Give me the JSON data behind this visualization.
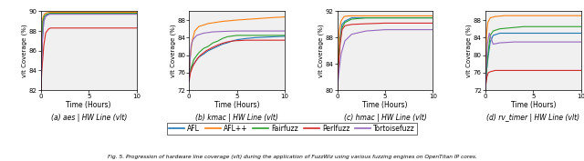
{
  "figsize": [
    6.4,
    1.77
  ],
  "dpi": 100,
  "colors": {
    "AFL": "#1f77b4",
    "AFL++": "#ff7f0e",
    "Fairfuzz": "#2ca02c",
    "Perlfuzz": "#d62728",
    "Tortoisefuzz": "#9467bd"
  },
  "subplots": [
    {
      "title": "(a) aes | HW Line (vlt)",
      "ylabel": "vlt Coverage (%)",
      "xlabel": "Time (Hours)",
      "xlim": [
        0,
        10
      ],
      "ylim": [
        82,
        90
      ],
      "yticks": [
        82,
        84,
        86,
        88,
        90
      ],
      "xticks": [
        0,
        5,
        10
      ],
      "series": {
        "AFL": {
          "x": [
            0,
            0.08,
            0.15,
            0.3,
            0.5,
            0.7,
            1.0,
            10
          ],
          "y": [
            82,
            84.5,
            87.0,
            89.0,
            89.5,
            89.7,
            89.8,
            89.8
          ]
        },
        "AFL++": {
          "x": [
            0,
            0.07,
            0.12,
            0.2,
            0.35,
            0.6,
            1.0,
            10
          ],
          "y": [
            82,
            85.0,
            88.0,
            89.3,
            89.7,
            89.85,
            89.9,
            89.9
          ]
        },
        "Fairfuzz": {
          "x": [
            0,
            0.05,
            0.12,
            0.2,
            0.35,
            0.6,
            1.0,
            10
          ],
          "y": [
            82,
            84.0,
            87.2,
            89.0,
            89.5,
            89.7,
            89.8,
            89.8
          ]
        },
        "Perlfuzz": {
          "x": [
            0,
            0.1,
            0.3,
            0.5,
            0.8,
            1.0,
            10
          ],
          "y": [
            82,
            84.0,
            86.5,
            87.8,
            88.2,
            88.3,
            88.3
          ]
        },
        "Tortoisefuzz": {
          "x": [
            0,
            0.07,
            0.15,
            0.3,
            0.5,
            0.8,
            1.0,
            10
          ],
          "y": [
            82,
            84.2,
            87.0,
            89.0,
            89.5,
            89.65,
            89.7,
            89.7
          ]
        }
      }
    },
    {
      "title": "(b) kmac | HW Line (vlt)",
      "ylabel": "vlt Coverage (%)",
      "xlabel": "Time (Hours)",
      "xlim": [
        0,
        10
      ],
      "ylim": [
        72,
        90
      ],
      "yticks": [
        72,
        76,
        80,
        84,
        88
      ],
      "xticks": [
        0,
        5,
        10
      ],
      "series": {
        "AFL": {
          "x": [
            0,
            0.2,
            0.5,
            1.0,
            1.5,
            2.0,
            2.5,
            3.0,
            3.5,
            4.0,
            4.5,
            5.0,
            6.0,
            7.0,
            8.0,
            9.0,
            10
          ],
          "y": [
            75,
            77,
            78,
            79.5,
            80.2,
            81.0,
            81.5,
            82.0,
            82.5,
            82.8,
            83.2,
            83.5,
            83.8,
            84.0,
            84.1,
            84.2,
            84.3
          ]
        },
        "AFL++": {
          "x": [
            0,
            0.1,
            0.3,
            0.6,
            1.0,
            2.0,
            3.5,
            5.0,
            7.0,
            9.0,
            10
          ],
          "y": [
            75,
            79,
            83,
            85.5,
            86.5,
            87.2,
            87.7,
            88.0,
            88.3,
            88.6,
            88.7
          ]
        },
        "Fairfuzz": {
          "x": [
            0,
            0.2,
            0.5,
            1.0,
            1.5,
            2.0,
            2.5,
            3.0,
            3.5,
            4.0,
            5.0,
            6.0,
            7.0,
            8.0,
            9.0,
            10
          ],
          "y": [
            75,
            77,
            79,
            80.5,
            81.5,
            82.0,
            82.8,
            83.2,
            83.8,
            84.2,
            84.5,
            84.5,
            84.5,
            84.5,
            84.5,
            84.5
          ]
        },
        "Perlfuzz": {
          "x": [
            0,
            0.15,
            0.4,
            0.8,
            1.2,
            1.8,
            2.5,
            3.0,
            3.5,
            4.0,
            4.5,
            5.0,
            6.0,
            7.0,
            8.0,
            9.0,
            10
          ],
          "y": [
            74,
            76,
            77.5,
            79,
            80,
            81,
            81.8,
            82.3,
            82.7,
            83.0,
            83.2,
            83.3,
            83.4,
            83.4,
            83.4,
            83.4,
            83.4
          ]
        },
        "Tortoisefuzz": {
          "x": [
            0,
            0.08,
            0.2,
            0.4,
            0.8,
            1.5,
            2.5,
            3.5,
            5.0,
            7.0,
            9.0,
            10
          ],
          "y": [
            74,
            78,
            82,
            83.5,
            84.5,
            85.0,
            85.3,
            85.4,
            85.5,
            85.5,
            85.5,
            85.5
          ]
        }
      }
    },
    {
      "title": "(c) hmac | HW Line (vlt)",
      "ylabel": "vlt Coverage (%)",
      "xlabel": "Time (Hours)",
      "xlim": [
        0,
        10
      ],
      "ylim": [
        80,
        92
      ],
      "yticks": [
        80,
        84,
        88,
        92
      ],
      "xticks": [
        0,
        5,
        10
      ],
      "series": {
        "AFL": {
          "x": [
            0,
            0.1,
            0.3,
            0.5,
            0.8,
            1.5,
            3.0,
            5.0,
            10
          ],
          "y": [
            80,
            84,
            88,
            90.0,
            90.5,
            91.0,
            91.0,
            91.0,
            91.0
          ]
        },
        "AFL++": {
          "x": [
            0,
            0.08,
            0.2,
            0.4,
            0.7,
            1.2,
            3.0,
            5.0,
            10
          ],
          "y": [
            80,
            85,
            89,
            90.5,
            91.2,
            91.3,
            91.3,
            91.3,
            91.3
          ]
        },
        "Fairfuzz": {
          "x": [
            0,
            0.1,
            0.3,
            0.5,
            0.8,
            1.5,
            3.0,
            5.0,
            10
          ],
          "y": [
            80,
            84,
            87.5,
            89.5,
            90.3,
            90.8,
            91.0,
            91.0,
            91.0
          ]
        },
        "Perlfuzz": {
          "x": [
            0,
            0.1,
            0.3,
            0.5,
            0.8,
            1.5,
            3.0,
            5.0,
            10
          ],
          "y": [
            80,
            83,
            87,
            89.2,
            89.8,
            90.0,
            90.1,
            90.2,
            90.2
          ]
        },
        "Tortoisefuzz": {
          "x": [
            0,
            0.15,
            0.4,
            0.8,
            1.5,
            3.0,
            5.0,
            10
          ],
          "y": [
            80,
            82.5,
            85.5,
            87.5,
            88.5,
            89.0,
            89.2,
            89.2
          ]
        }
      }
    },
    {
      "title": "(d) rv_timer | HW Line (vlt)",
      "ylabel": "vlt Coverage (%)",
      "xlabel": "Time (Hours)",
      "xlim": [
        0,
        10
      ],
      "ylim": [
        72,
        90
      ],
      "yticks": [
        72,
        76,
        80,
        84,
        88
      ],
      "xticks": [
        0,
        5,
        10
      ],
      "series": {
        "AFL": {
          "x": [
            0,
            0.1,
            0.3,
            0.5,
            0.8,
            1.5,
            3.0,
            5.0,
            7.0,
            10
          ],
          "y": [
            72,
            76,
            80,
            83,
            84.5,
            85.0,
            85.0,
            85.0,
            85.0,
            85.0
          ]
        },
        "AFL++": {
          "x": [
            0,
            0.05,
            0.12,
            0.25,
            0.5,
            1.0,
            2.0,
            5.0,
            10
          ],
          "y": [
            72,
            79,
            85,
            87.5,
            88.5,
            88.8,
            89.0,
            89.0,
            89.0
          ]
        },
        "Fairfuzz": {
          "x": [
            0,
            0.1,
            0.3,
            0.5,
            0.8,
            1.5,
            4.0,
            6.5,
            7.0,
            10
          ],
          "y": [
            72,
            76,
            81,
            84.5,
            85.5,
            86.0,
            86.5,
            86.5,
            86.5,
            86.5
          ]
        },
        "Perlfuzz": {
          "x": [
            0,
            0.05,
            0.15,
            0.3,
            0.5,
            1.0,
            3.0,
            10
          ],
          "y": [
            72,
            73.5,
            75,
            76,
            76.2,
            76.5,
            76.5,
            76.5
          ]
        },
        "Tortoisefuzz": {
          "x": [
            0,
            0.08,
            0.2,
            0.4,
            0.8,
            1.5,
            3.0,
            5.0,
            10
          ],
          "y": [
            72,
            77,
            82.5,
            85.0,
            82.5,
            82.8,
            83.0,
            83.0,
            83.0
          ]
        }
      }
    }
  ],
  "legend_entries": [
    "AFL",
    "AFL++",
    "Fairfuzz",
    "Perlfuzz",
    "Tortoisefuzz"
  ],
  "caption": "Fig. 5. Progression of hardware line coverage (vlt) during the application of FuzzWiz using various fuzzing engines on OpenTitan IP cores.",
  "lw": 0.8,
  "axes_facecolor": "#f0f0f0",
  "fig_facecolor": "#ffffff"
}
